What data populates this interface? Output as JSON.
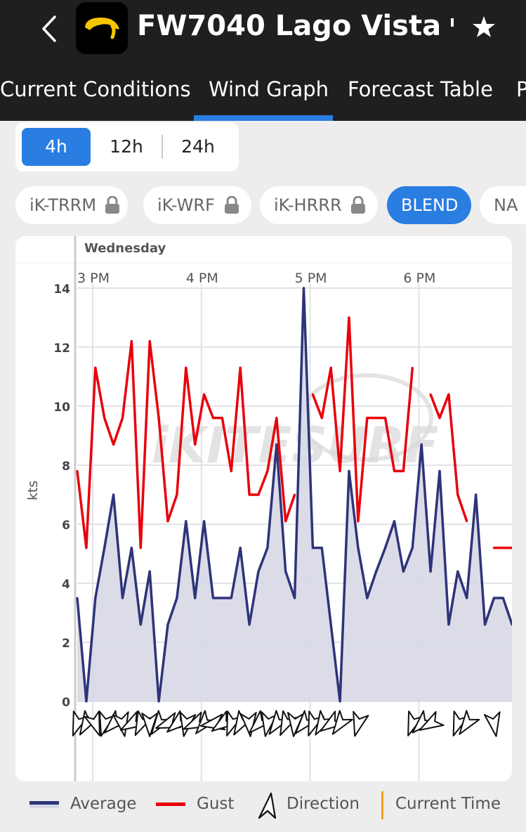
{
  "header": {
    "back_icon": "chevron-left-icon",
    "app_logo_icon": "ikitesurf-logo-icon",
    "title": "FW7040 Lago Vista",
    "favorite_icon": "star-icon"
  },
  "tabs": [
    {
      "label": "Current Conditions",
      "active": false
    },
    {
      "label": "Wind Graph",
      "active": true
    },
    {
      "label": "Forecast Table",
      "active": false
    },
    {
      "label": "P",
      "active": false
    }
  ],
  "range_selector": [
    {
      "label": "4h",
      "active": true
    },
    {
      "label": "12h",
      "active": false
    },
    {
      "label": "24h",
      "active": false
    }
  ],
  "models": [
    {
      "label": "iK-TRRM",
      "locked": true,
      "active": false
    },
    {
      "label": "iK-WRF",
      "locked": true,
      "active": false
    },
    {
      "label": "iK-HRRR",
      "locked": true,
      "active": false
    },
    {
      "label": "BLEND",
      "locked": false,
      "active": true
    },
    {
      "label": "NA",
      "locked": false,
      "active": false
    }
  ],
  "colors": {
    "accent": "#2a7de1",
    "average": "#2e3478",
    "gust": "#e8000b",
    "current_time": "#f0a020"
  },
  "chart_data": {
    "type": "line",
    "day_label": "Wednesday",
    "time_labels": [
      "3 PM",
      "4 PM",
      "5 PM",
      "6 PM"
    ],
    "ylabel": "kts",
    "ylim": [
      0,
      14
    ],
    "yticks": [
      0,
      2,
      4,
      6,
      8,
      10,
      12,
      14
    ],
    "watermark": "iKITESURF",
    "x_minutes": [
      0,
      5,
      10,
      15,
      20,
      25,
      30,
      35,
      40,
      45,
      50,
      55,
      60,
      65,
      70,
      75,
      80,
      85,
      90,
      95,
      100,
      105,
      110,
      115,
      120,
      125,
      130,
      135,
      140,
      145,
      150,
      155,
      160,
      165,
      170,
      175,
      180,
      185,
      190,
      195,
      200,
      205,
      210,
      215,
      220,
      225,
      230,
      235,
      240,
      245
    ],
    "series": [
      {
        "name": "Average",
        "values": [
          3.5,
          0,
          3.5,
          5.2,
          7.0,
          3.5,
          5.2,
          2.6,
          4.4,
          0,
          2.6,
          3.5,
          6.1,
          3.5,
          6.1,
          3.5,
          3.5,
          3.5,
          5.2,
          2.6,
          4.4,
          5.2,
          8.7,
          4.4,
          3.5,
          14.0,
          5.2,
          5.2,
          2.6,
          0,
          7.8,
          5.2,
          3.5,
          4.4,
          5.2,
          6.1,
          4.4,
          5.2,
          8.7,
          4.4,
          7.8,
          2.6,
          4.4,
          3.5,
          7.0,
          2.6,
          3.5,
          3.5,
          2.6,
          2.6
        ]
      },
      {
        "name": "Gust",
        "values": [
          7.8,
          5.2,
          11.3,
          9.6,
          8.7,
          9.6,
          12.2,
          5.2,
          12.2,
          9.6,
          6.1,
          7.0,
          11.3,
          8.7,
          10.4,
          9.6,
          9.6,
          7.8,
          11.3,
          7.0,
          7.0,
          7.8,
          9.6,
          6.1,
          7.0,
          null,
          10.4,
          9.6,
          11.3,
          7.8,
          13.0,
          6.1,
          9.6,
          9.6,
          9.6,
          7.8,
          7.8,
          11.3,
          null,
          10.4,
          9.6,
          10.4,
          7.0,
          6.1,
          null,
          null,
          5.2,
          5.2,
          5.2,
          null
        ]
      }
    ],
    "directions_deg": [
      200,
      210,
      160,
      195,
      225,
      170,
      240,
      205,
      180,
      215,
      250,
      230,
      190,
      245,
      220,
      260,
      235,
      200,
      210,
      175,
      225,
      190,
      215,
      205,
      185,
      220,
      200,
      210,
      235,
      215,
      null,
      195,
      null,
      null,
      null,
      null,
      null,
      200,
      225,
      240,
      null,
      null,
      200,
      215,
      null,
      null,
      170,
      null,
      null,
      null
    ]
  },
  "legend": [
    {
      "label": "Average"
    },
    {
      "label": "Gust"
    },
    {
      "label": "Direction"
    },
    {
      "label": "Current Time"
    }
  ]
}
